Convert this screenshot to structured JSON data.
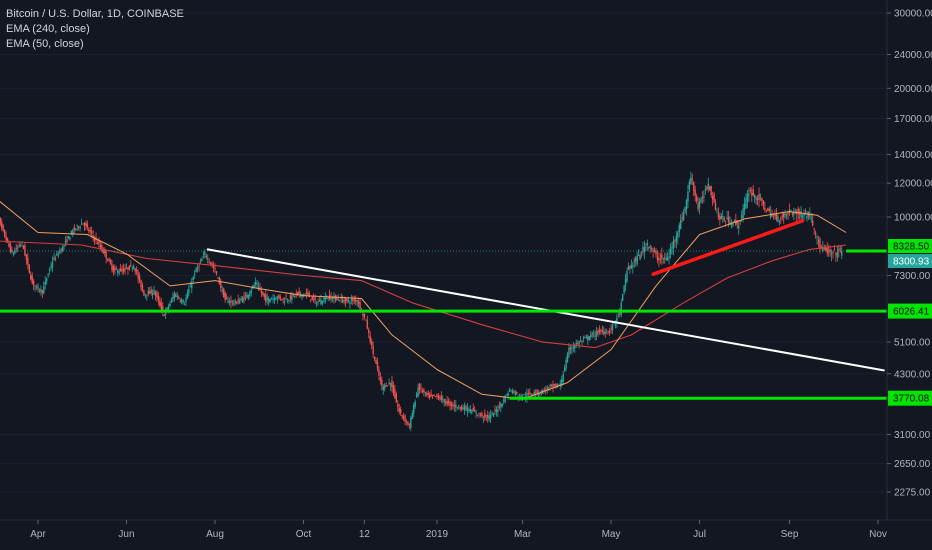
{
  "legend": {
    "title": "Bitcoin / U.S. Dollar, 1D, COINBASE",
    "ema1": "EMA (240, close)",
    "ema2": "EMA (50, close)"
  },
  "chart_data": {
    "type": "candlestick",
    "title": "Bitcoin / U.S. Dollar, 1D, COINBASE",
    "y_scale": "log",
    "y_ticks": [
      30000,
      24000,
      20000,
      17000,
      14000,
      12000,
      10000,
      7300,
      5100,
      4300,
      3100,
      2650,
      2275
    ],
    "y_tick_labels": [
      "30000.00",
      "24000.00",
      "20000.00",
      "17000.00",
      "14000.00",
      "12000.00",
      "10000.00",
      "7300.00",
      "5100.00",
      "4300.00",
      "3100.00",
      "2650.00",
      "2275.00"
    ],
    "x_ticks": [
      "Apr",
      "Jun",
      "Aug",
      "Oct",
      "12",
      "2019",
      "Mar",
      "May",
      "Jul",
      "Sep",
      "Nov"
    ],
    "x_tick_dates": [
      "2018-04-01",
      "2018-06-01",
      "2018-08-01",
      "2018-10-01",
      "2018-11-12",
      "2019-01-01",
      "2019-03-01",
      "2019-05-01",
      "2019-07-01",
      "2019-09-01",
      "2019-11-01"
    ],
    "x_range": [
      "2018-03-01",
      "2019-11-01"
    ],
    "price_points": [
      [
        "2018-03-01",
        10900
      ],
      [
        "2018-03-08",
        9400
      ],
      [
        "2018-03-15",
        8200
      ],
      [
        "2018-03-22",
        8700
      ],
      [
        "2018-03-29",
        7000
      ],
      [
        "2018-04-05",
        6700
      ],
      [
        "2018-04-12",
        7900
      ],
      [
        "2018-04-19",
        8500
      ],
      [
        "2018-04-26",
        9300
      ],
      [
        "2018-05-03",
        9700
      ],
      [
        "2018-05-10",
        9000
      ],
      [
        "2018-05-17",
        8300
      ],
      [
        "2018-05-24",
        7500
      ],
      [
        "2018-05-31",
        7500
      ],
      [
        "2018-06-07",
        7700
      ],
      [
        "2018-06-14",
        6600
      ],
      [
        "2018-06-21",
        6700
      ],
      [
        "2018-06-28",
        5900
      ],
      [
        "2018-07-05",
        6600
      ],
      [
        "2018-07-12",
        6300
      ],
      [
        "2018-07-19",
        7400
      ],
      [
        "2018-07-26",
        8200
      ],
      [
        "2018-08-02",
        7500
      ],
      [
        "2018-08-09",
        6400
      ],
      [
        "2018-08-16",
        6300
      ],
      [
        "2018-08-23",
        6500
      ],
      [
        "2018-08-30",
        7000
      ],
      [
        "2018-09-06",
        6400
      ],
      [
        "2018-09-13",
        6500
      ],
      [
        "2018-09-20",
        6400
      ],
      [
        "2018-09-27",
        6600
      ],
      [
        "2018-10-04",
        6600
      ],
      [
        "2018-10-11",
        6300
      ],
      [
        "2018-10-18",
        6500
      ],
      [
        "2018-10-25",
        6450
      ],
      [
        "2018-11-01",
        6350
      ],
      [
        "2018-11-08",
        6400
      ],
      [
        "2018-11-14",
        5700
      ],
      [
        "2018-11-19",
        4800
      ],
      [
        "2018-11-25",
        4000
      ],
      [
        "2018-12-01",
        4100
      ],
      [
        "2018-12-07",
        3500
      ],
      [
        "2018-12-14",
        3250
      ],
      [
        "2018-12-20",
        4000
      ],
      [
        "2018-12-27",
        3800
      ],
      [
        "2019-01-03",
        3800
      ],
      [
        "2019-01-10",
        3650
      ],
      [
        "2019-01-17",
        3600
      ],
      [
        "2019-01-24",
        3550
      ],
      [
        "2019-01-31",
        3450
      ],
      [
        "2019-02-07",
        3400
      ],
      [
        "2019-02-14",
        3600
      ],
      [
        "2019-02-21",
        3950
      ],
      [
        "2019-02-28",
        3800
      ],
      [
        "2019-03-07",
        3850
      ],
      [
        "2019-03-14",
        3900
      ],
      [
        "2019-03-21",
        4000
      ],
      [
        "2019-03-28",
        4050
      ],
      [
        "2019-04-03",
        4900
      ],
      [
        "2019-04-10",
        5100
      ],
      [
        "2019-04-17",
        5250
      ],
      [
        "2019-04-24",
        5400
      ],
      [
        "2019-05-01",
        5400
      ],
      [
        "2019-05-08",
        6000
      ],
      [
        "2019-05-13",
        7500
      ],
      [
        "2019-05-20",
        8000
      ],
      [
        "2019-05-27",
        8700
      ],
      [
        "2019-06-03",
        8000
      ],
      [
        "2019-06-10",
        8000
      ],
      [
        "2019-06-17",
        9300
      ],
      [
        "2019-06-22",
        10500
      ],
      [
        "2019-06-26",
        12500
      ],
      [
        "2019-07-01",
        10500
      ],
      [
        "2019-07-08",
        12000
      ],
      [
        "2019-07-15",
        10000
      ],
      [
        "2019-07-22",
        9800
      ],
      [
        "2019-07-29",
        9600
      ],
      [
        "2019-08-05",
        11500
      ],
      [
        "2019-08-12",
        11000
      ],
      [
        "2019-08-19",
        10200
      ],
      [
        "2019-08-26",
        9900
      ],
      [
        "2019-09-02",
        10300
      ],
      [
        "2019-09-09",
        10200
      ],
      [
        "2019-09-16",
        10100
      ],
      [
        "2019-09-23",
        8500
      ],
      [
        "2019-09-30",
        8200
      ],
      [
        "2019-10-07",
        8300
      ]
    ],
    "ema_50": [
      [
        "2018-03-01",
        11200
      ],
      [
        "2018-04-01",
        9200
      ],
      [
        "2018-05-05",
        9100
      ],
      [
        "2018-06-01",
        8200
      ],
      [
        "2018-07-01",
        6900
      ],
      [
        "2018-08-01",
        7100
      ],
      [
        "2018-09-01",
        6800
      ],
      [
        "2018-10-01",
        6550
      ],
      [
        "2018-11-10",
        6450
      ],
      [
        "2018-12-01",
        5300
      ],
      [
        "2019-01-01",
        4400
      ],
      [
        "2019-02-01",
        3850
      ],
      [
        "2019-03-01",
        3750
      ],
      [
        "2019-04-01",
        4100
      ],
      [
        "2019-05-01",
        4900
      ],
      [
        "2019-06-01",
        6900
      ],
      [
        "2019-07-01",
        9100
      ],
      [
        "2019-08-01",
        9900
      ],
      [
        "2019-09-01",
        10300
      ],
      [
        "2019-09-20",
        10100
      ],
      [
        "2019-10-10",
        9200
      ]
    ],
    "ema_240": [
      [
        "2018-03-01",
        8800
      ],
      [
        "2018-05-01",
        8600
      ],
      [
        "2018-06-15",
        8000
      ],
      [
        "2018-08-01",
        7700
      ],
      [
        "2018-10-01",
        7300
      ],
      [
        "2018-11-10",
        7100
      ],
      [
        "2018-12-15",
        6300
      ],
      [
        "2019-02-01",
        5600
      ],
      [
        "2019-03-15",
        5100
      ],
      [
        "2019-04-20",
        4950
      ],
      [
        "2019-05-15",
        5300
      ],
      [
        "2019-06-20",
        6300
      ],
      [
        "2019-07-20",
        7200
      ],
      [
        "2019-08-20",
        7900
      ],
      [
        "2019-09-15",
        8400
      ],
      [
        "2019-10-10",
        8600
      ]
    ],
    "price_lines": [
      {
        "label": "8328.50",
        "value": 8328.5,
        "style": "dotted"
      },
      {
        "label": "8300.93",
        "value": 8300.93
      }
    ],
    "drawings": [
      {
        "kind": "trendline",
        "color": "#ffffff",
        "from": [
          "2018-07-27",
          8400
        ],
        "to": [
          "2019-11-05",
          4380
        ]
      },
      {
        "kind": "trendline",
        "color": "#ff1a1a",
        "from": [
          "2019-05-30",
          7350
        ],
        "to": [
          "2019-09-10",
          9800
        ]
      },
      {
        "kind": "horizontal",
        "color": "#00e600",
        "value": 6026.41,
        "label": "6026.41"
      },
      {
        "kind": "horizontal",
        "color": "#00e600",
        "value": 3770.08,
        "label": "3770.08",
        "from": "2019-02-20"
      },
      {
        "kind": "horizontal",
        "color": "#00e600",
        "value": 8328.5,
        "label": "8328.50",
        "from": "2019-10-10"
      }
    ],
    "colors": {
      "background": "#131722",
      "up": "#26a69a",
      "down": "#ef5350",
      "ema_50": "#f0a060",
      "ema_240": "#d33f3f",
      "axis_text": "#b2b5be"
    }
  }
}
